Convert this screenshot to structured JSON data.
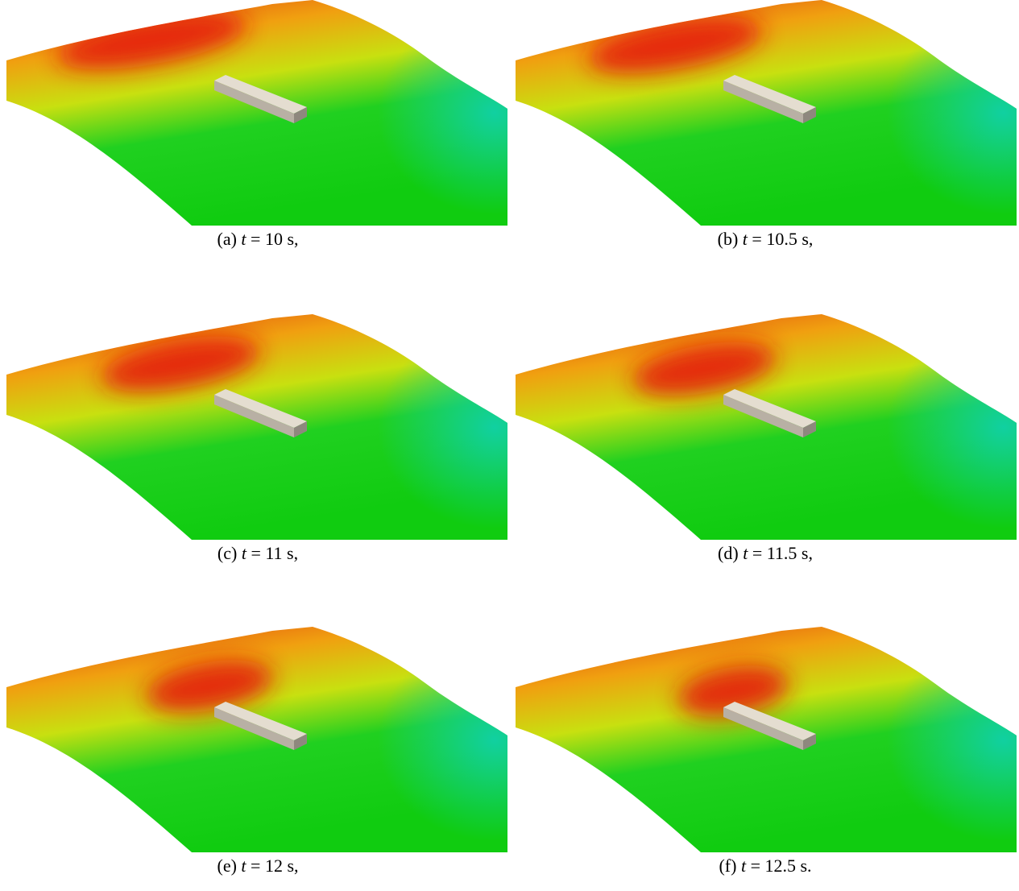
{
  "panels": [
    {
      "label": "(a)",
      "variable": "t",
      "caption": "= 10 s,"
    },
    {
      "label": "(b)",
      "variable": "t",
      "caption": "= 10.5 s,"
    },
    {
      "label": "(c)",
      "variable": "t",
      "caption": "= 11 s,"
    },
    {
      "label": "(d)",
      "variable": "t",
      "caption": "= 11.5 s,"
    },
    {
      "label": "(e)",
      "variable": "t",
      "caption": "= 12 s,"
    },
    {
      "label": "(f)",
      "variable": "t",
      "caption": "= 12.5 s."
    }
  ]
}
